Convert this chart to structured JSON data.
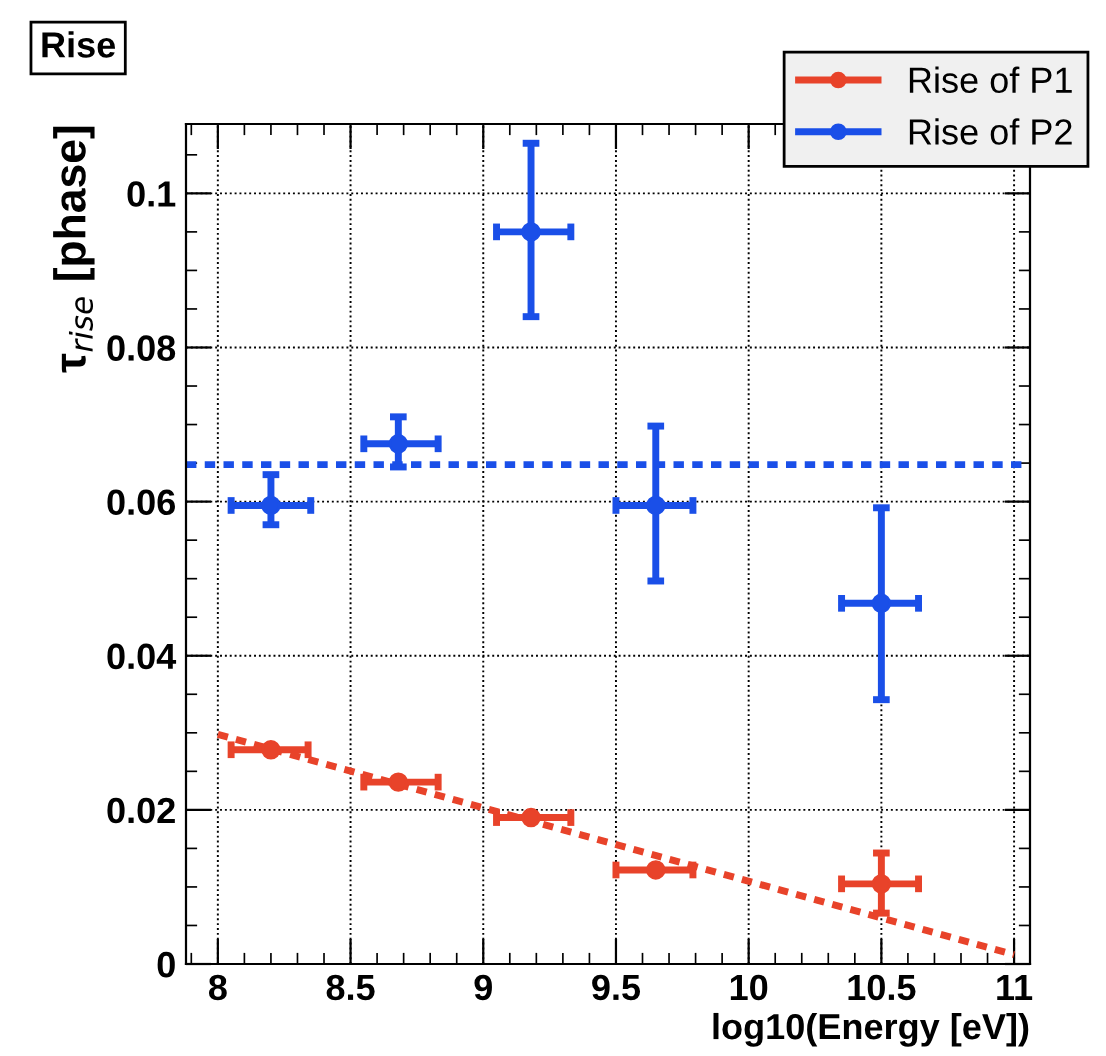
{
  "chart_data": {
    "type": "scatter",
    "title": "Rise",
    "xlabel": "log10(Energy [eV])",
    "ylabel": "τ$_{rise}$ [phase]",
    "xlim": [
      7.88,
      11.06
    ],
    "ylim": [
      0,
      0.109
    ],
    "xticks": [
      8,
      8.5,
      9,
      9.5,
      10,
      10.5,
      11
    ],
    "yticks": [
      0,
      0.02,
      0.04,
      0.06,
      0.08,
      {
        "value": 0.1,
        "label": "0.1"
      }
    ],
    "grid": true,
    "legend": "top right",
    "marker": "circle",
    "series": [
      {
        "name": "Rise of P1",
        "color": "#e8432a",
        "x": [
          8.2,
          8.68,
          9.18,
          9.65,
          10.5
        ],
        "values": [
          0.0278,
          0.0236,
          0.019,
          0.0122,
          0.0104
        ],
        "errors": [
          null,
          null,
          null,
          null,
          [
            0.0066,
            0.0144
          ]
        ],
        "xerrors": [
          [
            8.05,
            8.34
          ],
          [
            8.55,
            8.83
          ],
          [
            9.05,
            9.33
          ],
          [
            9.5,
            9.79
          ],
          [
            10.35,
            10.64
          ]
        ]
      },
      {
        "name": "Rise of P2",
        "color": "#1a4fe8",
        "x": [
          8.2,
          8.68,
          9.18,
          9.65,
          10.5
        ],
        "values": [
          0.0595,
          0.0675,
          0.095,
          0.0595,
          0.0468
        ],
        "errors": [
          [
            0.057,
            0.0635
          ],
          [
            0.0645,
            0.071
          ],
          [
            0.084,
            0.1065
          ],
          [
            0.0497,
            0.0698
          ],
          [
            0.0343,
            0.0592
          ]
        ],
        "xerrors": [
          [
            8.05,
            8.35
          ],
          [
            8.55,
            8.83
          ],
          [
            9.05,
            9.33
          ],
          [
            9.5,
            9.79
          ],
          [
            10.35,
            10.64
          ]
        ]
      },
      {
        "type": "line",
        "marker": "none",
        "color": "#e8432a",
        "line_style": "dotted",
        "x": [
          8,
          11
        ],
        "values": [
          0.0298,
          0.0012
        ]
      },
      {
        "type": "line",
        "marker": "none",
        "color": "#1a4fe8",
        "line_style": "dotted",
        "x": [
          7.88,
          11.06
        ],
        "values": [
          0.0648,
          0.0648
        ]
      }
    ]
  }
}
